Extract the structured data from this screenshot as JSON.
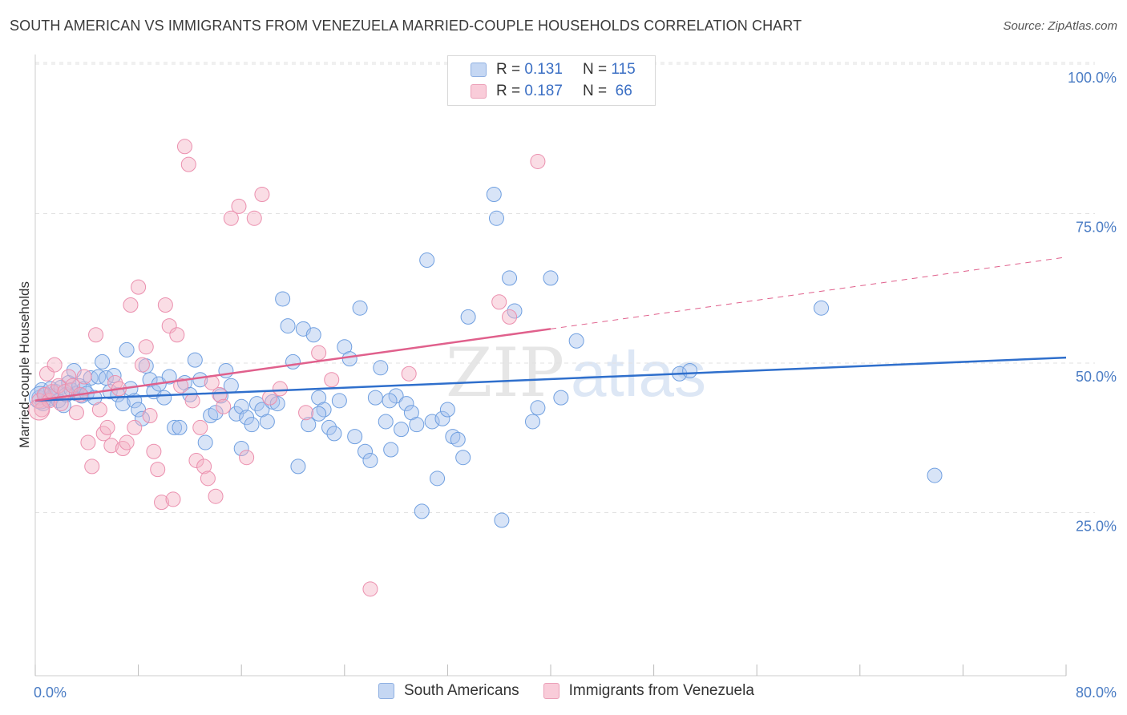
{
  "header": {
    "title": "SOUTH AMERICAN VS IMMIGRANTS FROM VENEZUELA MARRIED-COUPLE HOUSEHOLDS CORRELATION CHART",
    "source": "Source: ZipAtlas.com"
  },
  "watermark": {
    "zip": "ZIP",
    "atlas": "atlas"
  },
  "stats_legend": {
    "rows": [
      {
        "r_label": "R =",
        "r_value": "0.131",
        "n_label": "N =",
        "n_value": "115",
        "color": "#a9c4ee"
      },
      {
        "r_label": "R =",
        "r_value": "0.187",
        "n_label": "N =",
        "n_value": "66",
        "color": "#f5b3c6"
      }
    ]
  },
  "chart_data": {
    "type": "scatter",
    "title": "SOUTH AMERICAN VS IMMIGRANTS FROM VENEZUELA MARRIED-COUPLE HOUSEHOLDS CORRELATION CHART",
    "xlabel": "",
    "ylabel": "Married-couple Households",
    "xlim": [
      0,
      80
    ],
    "ylim": [
      0,
      102
    ],
    "x_tick_labels": [
      "0.0%",
      "80.0%"
    ],
    "y_tick_labels": [
      "25.0%",
      "50.0%",
      "75.0%",
      "100.0%"
    ],
    "y_ticks": [
      25,
      50,
      75,
      100
    ],
    "grid": true,
    "legend_position": "bottom",
    "series": [
      {
        "name": "South Americans",
        "color": "#6f9fe0",
        "fill": "#a9c4ee",
        "trend": {
          "x": [
            0,
            80
          ],
          "y": [
            46.0,
            53.2
          ],
          "color": "#2f6fcc"
        },
        "points": [
          [
            0.3,
            46.5
          ],
          [
            0.5,
            47.8
          ],
          [
            0.6,
            45.5
          ],
          [
            0.8,
            47.0
          ],
          [
            1.0,
            46.2
          ],
          [
            1.2,
            48.0
          ],
          [
            1.4,
            46.8
          ],
          [
            1.6,
            47.5
          ],
          [
            1.8,
            46.0
          ],
          [
            2.0,
            48.2
          ],
          [
            2.2,
            45.2
          ],
          [
            2.4,
            47.0
          ],
          [
            2.6,
            49.0
          ],
          [
            2.8,
            47.8
          ],
          [
            3.0,
            51.0
          ],
          [
            3.2,
            47.2
          ],
          [
            3.4,
            48.5
          ],
          [
            3.6,
            46.8
          ],
          [
            3.8,
            48.0
          ],
          [
            4.0,
            47.2
          ],
          [
            4.3,
            49.8
          ],
          [
            4.6,
            46.5
          ],
          [
            4.9,
            50.0
          ],
          [
            5.2,
            52.5
          ],
          [
            5.5,
            49.8
          ],
          [
            5.8,
            47.5
          ],
          [
            6.1,
            50.2
          ],
          [
            6.4,
            47.0
          ],
          [
            6.8,
            45.5
          ],
          [
            7.1,
            54.5
          ],
          [
            7.4,
            48.0
          ],
          [
            7.7,
            46.0
          ],
          [
            8.0,
            44.5
          ],
          [
            8.3,
            43.0
          ],
          [
            8.6,
            51.8
          ],
          [
            8.9,
            49.5
          ],
          [
            9.2,
            47.5
          ],
          [
            9.6,
            48.8
          ],
          [
            10.0,
            46.5
          ],
          [
            10.4,
            50.0
          ],
          [
            10.8,
            41.5
          ],
          [
            11.2,
            41.5
          ],
          [
            11.6,
            49.0
          ],
          [
            12.0,
            47.0
          ],
          [
            12.4,
            52.8
          ],
          [
            12.8,
            49.5
          ],
          [
            13.2,
            39.0
          ],
          [
            13.6,
            43.5
          ],
          [
            14.0,
            44.0
          ],
          [
            14.4,
            46.8
          ],
          [
            14.8,
            51.0
          ],
          [
            15.2,
            48.5
          ],
          [
            15.6,
            43.8
          ],
          [
            16.0,
            45.0
          ],
          [
            16.4,
            43.2
          ],
          [
            16.8,
            42.0
          ],
          [
            17.2,
            45.5
          ],
          [
            17.6,
            44.5
          ],
          [
            18.0,
            42.5
          ],
          [
            18.4,
            45.8
          ],
          [
            18.8,
            45.5
          ],
          [
            19.2,
            63.0
          ],
          [
            19.6,
            58.5
          ],
          [
            20.0,
            52.5
          ],
          [
            20.4,
            35.0
          ],
          [
            20.8,
            58.0
          ],
          [
            21.2,
            42.0
          ],
          [
            21.6,
            57.0
          ],
          [
            22.0,
            46.5
          ],
          [
            22.4,
            44.5
          ],
          [
            22.8,
            41.5
          ],
          [
            23.2,
            40.5
          ],
          [
            23.6,
            46.0
          ],
          [
            24.0,
            55.0
          ],
          [
            24.4,
            53.0
          ],
          [
            24.8,
            40.0
          ],
          [
            25.2,
            61.5
          ],
          [
            25.6,
            37.5
          ],
          [
            26.0,
            36.0
          ],
          [
            26.4,
            46.5
          ],
          [
            26.8,
            51.5
          ],
          [
            27.2,
            42.5
          ],
          [
            27.6,
            37.8
          ],
          [
            28.0,
            46.8
          ],
          [
            28.4,
            41.2
          ],
          [
            28.8,
            45.5
          ],
          [
            29.2,
            44.0
          ],
          [
            29.6,
            42.0
          ],
          [
            30.0,
            27.5
          ],
          [
            30.4,
            69.5
          ],
          [
            30.8,
            42.5
          ],
          [
            31.2,
            33.0
          ],
          [
            31.6,
            43.0
          ],
          [
            32.0,
            44.5
          ],
          [
            32.4,
            40.0
          ],
          [
            32.8,
            39.5
          ],
          [
            33.2,
            36.5
          ],
          [
            33.6,
            60.0
          ],
          [
            35.6,
            80.5
          ],
          [
            35.8,
            76.5
          ],
          [
            36.2,
            26.0
          ],
          [
            36.8,
            66.5
          ],
          [
            37.2,
            61.0
          ],
          [
            38.6,
            42.5
          ],
          [
            39.0,
            44.8
          ],
          [
            40.0,
            66.5
          ],
          [
            40.8,
            46.5
          ],
          [
            42.0,
            56.0
          ],
          [
            50.0,
            50.5
          ],
          [
            50.8,
            51.0
          ],
          [
            61.0,
            61.5
          ],
          [
            69.8,
            33.5
          ],
          [
            16.0,
            38.0
          ],
          [
            22.0,
            43.8
          ],
          [
            27.5,
            46.0
          ]
        ]
      },
      {
        "name": "Immigrants from Venezuela",
        "color": "#eb8fae",
        "fill": "#f5b3c6",
        "trend": {
          "x": [
            0,
            40
          ],
          "y": [
            46.0,
            58.0
          ],
          "color": "#e0608c",
          "dashed_extension": {
            "x": [
              40,
              80
            ],
            "y": [
              58.0,
              70.0
            ]
          }
        },
        "points": [
          [
            0.3,
            46.0
          ],
          [
            0.5,
            44.5
          ],
          [
            0.7,
            47.0
          ],
          [
            0.9,
            50.5
          ],
          [
            1.1,
            46.0
          ],
          [
            1.3,
            47.5
          ],
          [
            1.5,
            52.0
          ],
          [
            1.8,
            48.5
          ],
          [
            2.0,
            45.5
          ],
          [
            2.3,
            47.5
          ],
          [
            2.6,
            50.0
          ],
          [
            2.9,
            48.5
          ],
          [
            3.2,
            44.0
          ],
          [
            3.5,
            47.0
          ],
          [
            3.8,
            50.0
          ],
          [
            4.1,
            39.0
          ],
          [
            4.4,
            35.0
          ],
          [
            4.7,
            57.0
          ],
          [
            5.0,
            44.5
          ],
          [
            5.3,
            40.5
          ],
          [
            5.6,
            41.5
          ],
          [
            5.9,
            38.5
          ],
          [
            6.2,
            49.0
          ],
          [
            6.5,
            48.0
          ],
          [
            6.8,
            38.0
          ],
          [
            7.1,
            39.0
          ],
          [
            7.4,
            62.0
          ],
          [
            7.7,
            41.5
          ],
          [
            8.0,
            65.0
          ],
          [
            8.3,
            52.0
          ],
          [
            8.6,
            55.0
          ],
          [
            8.9,
            43.5
          ],
          [
            9.2,
            37.5
          ],
          [
            9.5,
            34.5
          ],
          [
            9.8,
            29.0
          ],
          [
            10.1,
            62.0
          ],
          [
            10.4,
            58.5
          ],
          [
            10.7,
            29.5
          ],
          [
            11.0,
            57.0
          ],
          [
            11.3,
            48.5
          ],
          [
            11.6,
            88.5
          ],
          [
            11.9,
            85.5
          ],
          [
            12.2,
            46.0
          ],
          [
            12.5,
            36.0
          ],
          [
            12.8,
            41.5
          ],
          [
            13.1,
            35.0
          ],
          [
            13.4,
            33.0
          ],
          [
            13.7,
            49.0
          ],
          [
            14.0,
            30.0
          ],
          [
            14.3,
            47.0
          ],
          [
            14.6,
            45.0
          ],
          [
            15.2,
            76.5
          ],
          [
            15.8,
            78.5
          ],
          [
            16.4,
            36.5
          ],
          [
            17.0,
            76.5
          ],
          [
            17.6,
            80.5
          ],
          [
            18.2,
            46.5
          ],
          [
            19.0,
            48.0
          ],
          [
            21.0,
            44.0
          ],
          [
            22.0,
            54.0
          ],
          [
            23.0,
            49.5
          ],
          [
            26.0,
            14.5
          ],
          [
            29.0,
            50.5
          ],
          [
            36.0,
            62.5
          ],
          [
            36.8,
            60.0
          ],
          [
            39.0,
            86.0
          ]
        ]
      }
    ]
  },
  "bottom_legend": {
    "items": [
      {
        "label": "South Americans",
        "color": "#a9c4ee"
      },
      {
        "label": "Immigrants from Venezuela",
        "color": "#f5b3c6"
      }
    ]
  }
}
